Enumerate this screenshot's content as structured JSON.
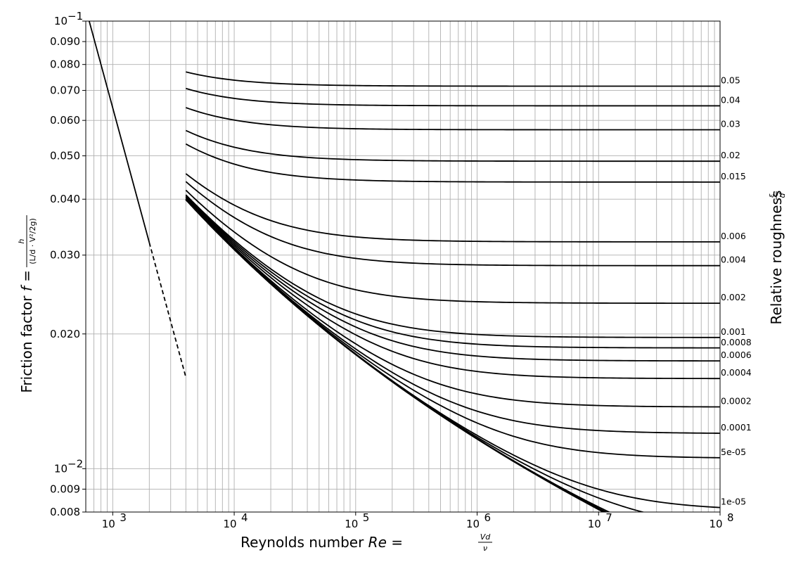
{
  "chart_data": {
    "type": "line",
    "title": "",
    "x_scale": "log",
    "y_scale": "log",
    "xlim": [
      600,
      100000000
    ],
    "ylim": [
      0.008,
      0.1
    ],
    "grid": true,
    "xlabel": {
      "prefix": "Reynolds number ",
      "symbol": "Re",
      "equals": " = ",
      "numerator": "Vd",
      "denominator": "ν"
    },
    "ylabel": {
      "prefix": "Friction factor ",
      "symbol": "f",
      "equals": " = ",
      "numerator": "h",
      "denominator": "(L/d · V²/2g)"
    },
    "y2label": {
      "text": "Relative roughness ",
      "numerator": "ε",
      "denominator": "d"
    },
    "x_ticks": [
      {
        "value": 1000,
        "base": "10",
        "exp": "3"
      },
      {
        "value": 10000,
        "base": "10",
        "exp": "4"
      },
      {
        "value": 100000,
        "base": "10",
        "exp": "5"
      },
      {
        "value": 1000000,
        "base": "10",
        "exp": "6"
      },
      {
        "value": 10000000,
        "base": "10",
        "exp": "7"
      },
      {
        "value": 100000000,
        "base": "10",
        "exp": "8"
      }
    ],
    "y_ticks": [
      {
        "value": 0.1,
        "label": "",
        "base": "10",
        "exp": "−1"
      },
      {
        "value": 0.09,
        "label": "0.090"
      },
      {
        "value": 0.08,
        "label": "0.080"
      },
      {
        "value": 0.07,
        "label": "0.070"
      },
      {
        "value": 0.06,
        "label": "0.060"
      },
      {
        "value": 0.05,
        "label": "0.050"
      },
      {
        "value": 0.04,
        "label": "0.040"
      },
      {
        "value": 0.03,
        "label": "0.030"
      },
      {
        "value": 0.02,
        "label": "0.020"
      },
      {
        "value": 0.01,
        "label": "",
        "base": "10",
        "exp": "−2"
      },
      {
        "value": 0.009,
        "label": "0.009"
      },
      {
        "value": 0.008,
        "label": "0.008"
      }
    ],
    "laminar": {
      "relation": "64/Re",
      "solid_range": [
        600,
        2000
      ],
      "dashed_range": [
        2000,
        4000
      ]
    },
    "turbulent_re_range": [
      4000,
      100000000
    ],
    "roughness_curves": [
      {
        "label": "0.05",
        "eps_d": 0.05
      },
      {
        "label": "0.04",
        "eps_d": 0.04
      },
      {
        "label": "0.03",
        "eps_d": 0.03
      },
      {
        "label": "0.02",
        "eps_d": 0.02
      },
      {
        "label": "0.015",
        "eps_d": 0.015
      },
      {
        "label": "0.006",
        "eps_d": 0.006
      },
      {
        "label": "0.004",
        "eps_d": 0.004
      },
      {
        "label": "0.002",
        "eps_d": 0.002
      },
      {
        "label": "0.001",
        "eps_d": 0.001
      },
      {
        "label": "0.0008",
        "eps_d": 0.0008
      },
      {
        "label": "0.0006",
        "eps_d": 0.0006
      },
      {
        "label": "0.0004",
        "eps_d": 0.0004
      },
      {
        "label": "0.0002",
        "eps_d": 0.0002
      },
      {
        "label": "0.0001",
        "eps_d": 0.0001
      },
      {
        "label": "5e-05",
        "eps_d": 5e-05
      },
      {
        "label": "1e-05",
        "eps_d": 1e-05
      },
      {
        "label": "",
        "eps_d": 5e-06
      },
      {
        "label": "",
        "eps_d": 1e-06
      },
      {
        "label": "",
        "eps_d": 5e-07
      },
      {
        "label": "",
        "eps_d": 1e-07
      },
      {
        "label": "",
        "eps_d": 0
      }
    ]
  }
}
